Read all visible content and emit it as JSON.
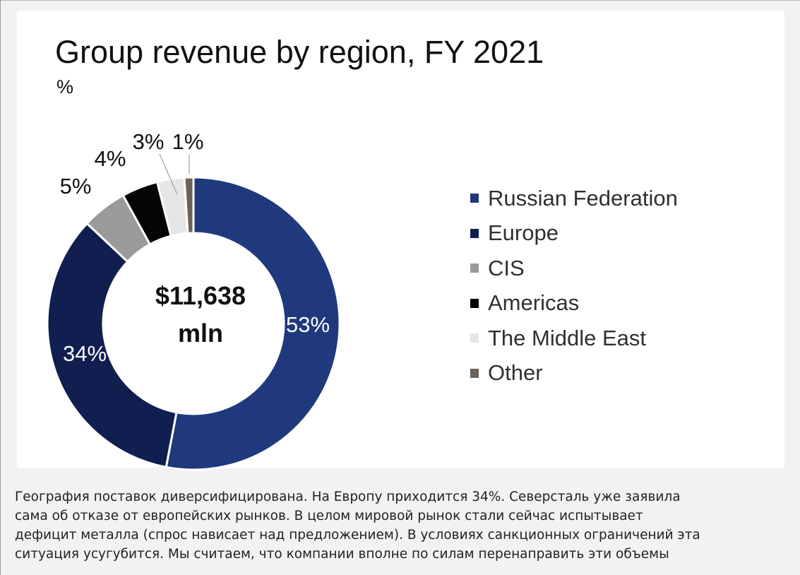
{
  "chart_data": {
    "type": "pie",
    "variant": "donut",
    "title": "Group revenue by region, FY 2021",
    "subtitle": "%",
    "center_label": [
      "$11,638",
      "mln"
    ],
    "categories": [
      "Russian Federation",
      "Europe",
      "CIS",
      "Americas",
      "The Middle East",
      "Other"
    ],
    "values": [
      53,
      34,
      5,
      4,
      3,
      1
    ],
    "value_labels": [
      "53%",
      "34%",
      "5%",
      "4%",
      "3%",
      "1%"
    ],
    "colors": [
      "#20397d",
      "#101f4f",
      "#9a9a9a",
      "#050505",
      "#e6e6e6",
      "#6b6159"
    ],
    "legend_position": "right"
  },
  "description": {
    "lines": [
      "География поставок диверсифицирована. На Европу приходится 34%. Северсталь уже заявила",
      "сама об отказе от европейских рынков. В целом мировой рынок стали сейчас испытывает",
      "дефицит металла (спрос нависает над предложением). В условиях санкционных ограничений эта",
      "ситуация усугубится. Мы считаем, что компании вполне по силам перенаправить эти объемы"
    ]
  }
}
